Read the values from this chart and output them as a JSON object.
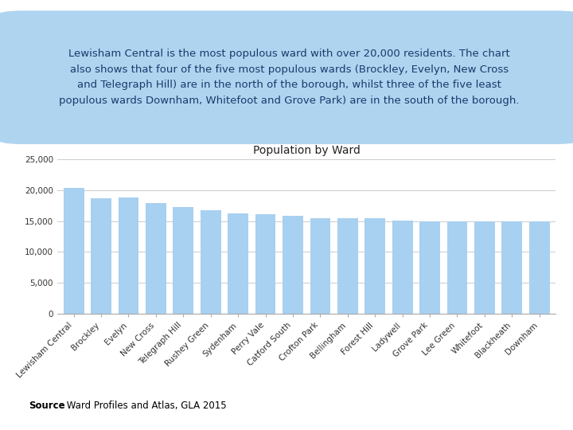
{
  "title": "Population by Ward",
  "wards": [
    "Lewisham Central",
    "Brockley",
    "Evelyn",
    "New Cross",
    "Telegraph Hill",
    "Rushey Green",
    "Sydenham",
    "Perry Vale",
    "Catford South",
    "Crofton Park",
    "Bellingham",
    "Forest Hill",
    "Ladywell",
    "Grove Park",
    "Lee Green",
    "Whitefoot",
    "Blackheath",
    "Downham"
  ],
  "values": [
    20300,
    18700,
    18800,
    17900,
    17200,
    16700,
    16200,
    16100,
    15800,
    15500,
    15400,
    15400,
    15100,
    15000,
    15000,
    15000,
    15000,
    15000
  ],
  "bar_color": "#a8d0f0",
  "ylim": [
    0,
    25000
  ],
  "yticks": [
    0,
    5000,
    10000,
    15000,
    20000,
    25000
  ],
  "ytick_labels": [
    "0",
    "5,000",
    "10,000",
    "15,000",
    "20,000",
    "25,000"
  ],
  "source_bold": "Source",
  "source_rest": ": Ward Profiles and Atlas, GLA 2015",
  "text_box_text": "Lewisham Central is the most populous ward with over 20,000 residents. The chart\nalso shows that four of the five most populous wards (Brockley, Evelyn, New Cross\nand Telegraph Hill) are in the north of the borough, whilst three of the five least\npopulous wards Downham, Whitefoot and Grove Park) are in the south of the borough.",
  "text_box_color": "#aed4f0",
  "text_color": "#1a3a6b",
  "grid_color": "#cccccc",
  "background_color": "#ffffff",
  "title_fontsize": 10,
  "tick_fontsize": 7.5,
  "source_fontsize": 8.5,
  "text_fontsize": 9.5
}
